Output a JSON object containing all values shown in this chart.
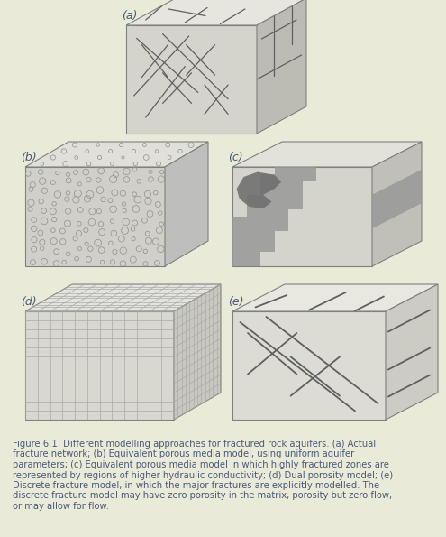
{
  "background_color": "#eaead8",
  "body_color": "#4a5a7a",
  "box_face_color": "#d4d4cc",
  "box_top_color": "#e6e6de",
  "box_right_color": "#bcbcb4",
  "box_edge_color": "#808080",
  "figure_caption": "Figure 6.1. Different modelling approaches for fractured rock aquifers. (a) Actual fracture network; (b) Equivalent porous media model, using uniform aquifer parameters; (c) Equivalent porous media model in which highly fractured zones are represented by regions of higher hydraulic conductivity; (d) Dual porosity model; (e) Discrete fracture model, in which the major fractures are explicitly modelled. The discrete fracture model may have zero porosity in the matrix, porosity but zero flow, or may allow for flow.",
  "label_a": "(a)",
  "label_b": "(b)",
  "label_c": "(c)",
  "label_d": "(d)",
  "label_e": "(e)",
  "label_fontsize": 9,
  "caption_fontsize": 7.2,
  "fig_w": 4.95,
  "fig_h": 5.95,
  "dpi": 100
}
